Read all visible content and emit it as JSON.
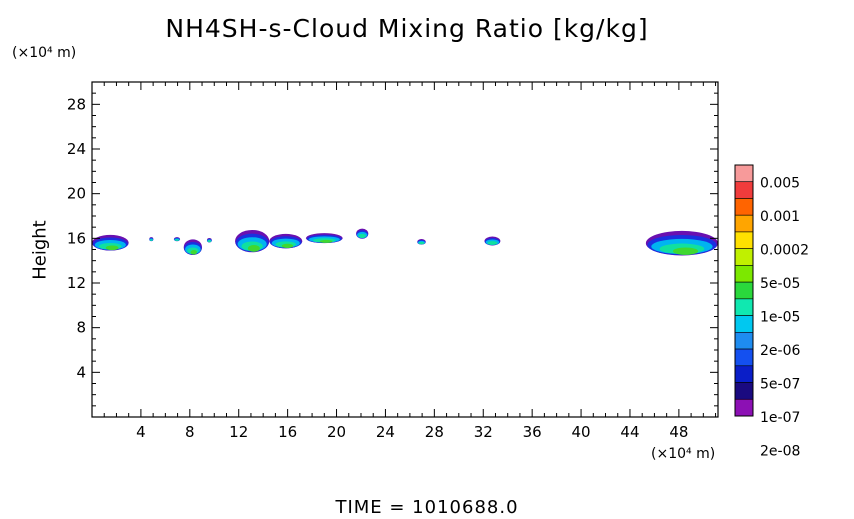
{
  "chart_data": {
    "type": "heatmap",
    "title": "NH4SH-s-Cloud Mixing Ratio [kg/kg]",
    "ylabel": "Height",
    "x_unit": "(×10⁴ m)",
    "y_unit": "(×10⁴ m)",
    "footer": "TIME  =  1010688.0",
    "xlim": [
      0,
      51.2
    ],
    "ylim": [
      0,
      30
    ],
    "x_ticks": [
      "4",
      "8",
      "12",
      "16",
      "20",
      "24",
      "28",
      "32",
      "36",
      "40",
      "44",
      "48"
    ],
    "y_ticks": [
      "4",
      "8",
      "12",
      "16",
      "20",
      "24",
      "28"
    ],
    "colorbar": {
      "labels": [
        "0.005",
        "0.001",
        "0.0002",
        "5e-05",
        "1e-05",
        "2e-06",
        "5e-07",
        "1e-07",
        "2e-08"
      ],
      "colors": [
        "#f79a9a",
        "#f03c3c",
        "#ff6400",
        "#ffa500",
        "#ffe000",
        "#c0f000",
        "#7ce800",
        "#2ad83c",
        "#10e8b0",
        "#00c8f0",
        "#1e8cf0",
        "#1450f0",
        "#0a1ec8",
        "#1a0a80",
        "#8c10b4"
      ]
    },
    "cloud_patches": [
      {
        "x": [
          0.0,
          3.0
        ],
        "y": [
          14.8,
          16.2
        ]
      },
      {
        "x": [
          4.7,
          5.0
        ],
        "y": [
          15.8,
          16.0
        ]
      },
      {
        "x": [
          6.7,
          7.2
        ],
        "y": [
          15.8,
          16.0
        ]
      },
      {
        "x": [
          7.5,
          9.0
        ],
        "y": [
          14.4,
          15.8
        ]
      },
      {
        "x": [
          9.4,
          9.8
        ],
        "y": [
          15.6,
          16.0
        ]
      },
      {
        "x": [
          11.7,
          14.5
        ],
        "y": [
          14.6,
          16.6
        ]
      },
      {
        "x": [
          14.5,
          17.2
        ],
        "y": [
          15.0,
          16.3
        ]
      },
      {
        "x": [
          17.5,
          20.5
        ],
        "y": [
          15.5,
          16.4
        ]
      },
      {
        "x": [
          21.6,
          22.6
        ],
        "y": [
          15.9,
          16.8
        ]
      },
      {
        "x": [
          26.6,
          27.3
        ],
        "y": [
          15.4,
          15.9
        ]
      },
      {
        "x": [
          32.1,
          33.4
        ],
        "y": [
          15.3,
          16.1
        ]
      },
      {
        "x": [
          45.3,
          51.2
        ],
        "y": [
          14.3,
          16.5
        ]
      }
    ]
  }
}
